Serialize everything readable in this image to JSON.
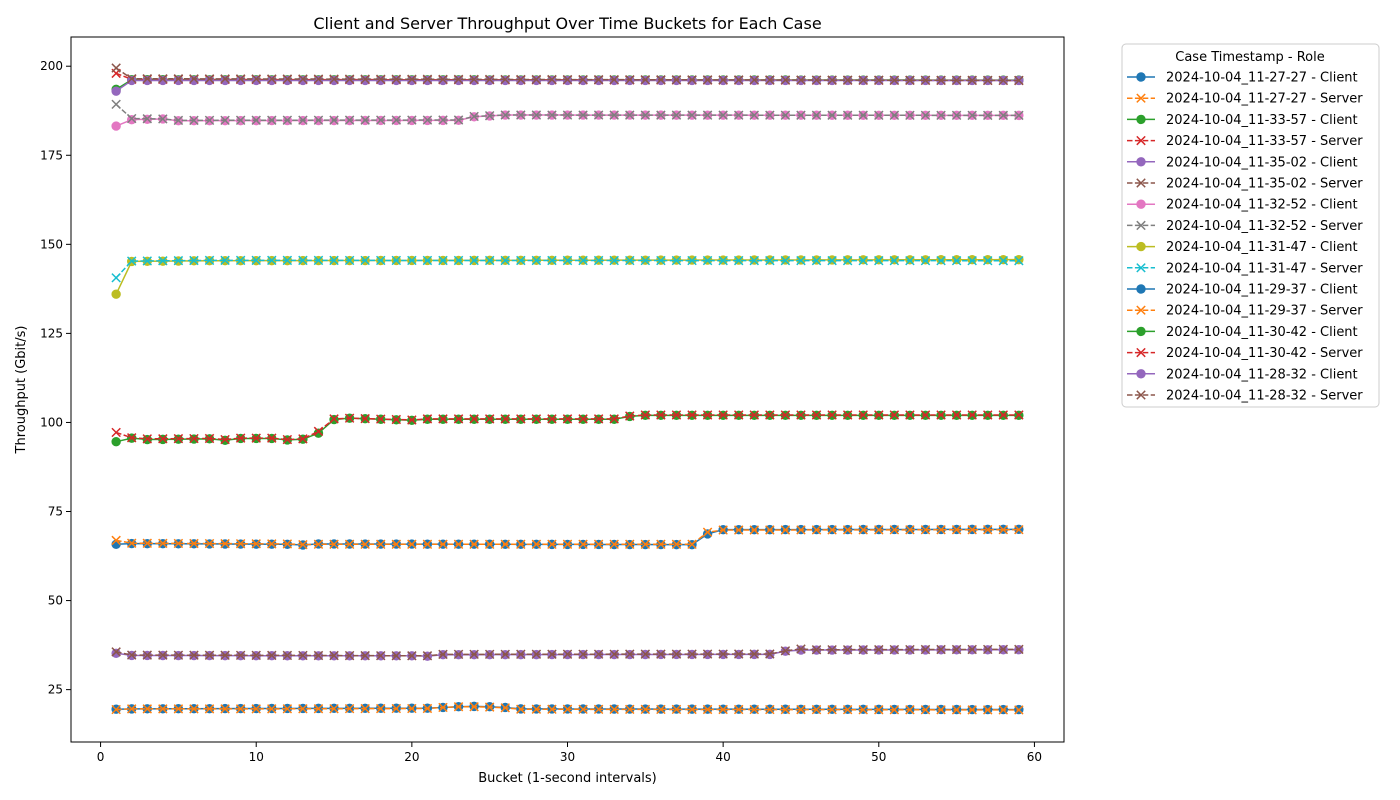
{
  "chart_data": {
    "type": "line",
    "title": "Client and Server Throughput Over Time Buckets for Each Case",
    "xlabel": "Bucket (1-second intervals)",
    "ylabel": "Throughput (Gbit/s)",
    "xlim": [
      -1.9,
      61.9
    ],
    "ylim": [
      10.3,
      208.2
    ],
    "xticks": [
      0,
      10,
      20,
      30,
      40,
      50,
      60
    ],
    "yticks": [
      25,
      50,
      75,
      100,
      125,
      150,
      175,
      200
    ],
    "grid": false,
    "legend": {
      "title": "Case Timestamp - Role",
      "placement": "outside-right"
    },
    "x_start": 1,
    "x_end": 59,
    "series": [
      {
        "name": "2024-10-04_11-27-27 - Client",
        "color": "#1f77b4",
        "style": "solid",
        "marker": "o",
        "anchors": [
          [
            1,
            19.5
          ],
          [
            2,
            19.6
          ],
          [
            10,
            19.7
          ],
          [
            21,
            19.8
          ],
          [
            22,
            20.0
          ],
          [
            23,
            20.2
          ],
          [
            24,
            20.3
          ],
          [
            25,
            20.2
          ],
          [
            26,
            20.0
          ],
          [
            27,
            19.6
          ],
          [
            59,
            19.4
          ]
        ]
      },
      {
        "name": "2024-10-04_11-27-27 - Server",
        "color": "#ff7f0e",
        "style": "dashed",
        "marker": "x",
        "anchors": [
          [
            1,
            19.4
          ],
          [
            2,
            19.6
          ],
          [
            10,
            19.6
          ],
          [
            21,
            19.7
          ],
          [
            22,
            20.0
          ],
          [
            23,
            20.2
          ],
          [
            24,
            20.2
          ],
          [
            25,
            20.1
          ],
          [
            26,
            19.9
          ],
          [
            27,
            19.5
          ],
          [
            59,
            19.3
          ]
        ]
      },
      {
        "name": "2024-10-04_11-33-57 - Client",
        "color": "#2ca02c",
        "style": "solid",
        "marker": "o",
        "anchors": [
          [
            1,
            193.5
          ],
          [
            2,
            196.2
          ],
          [
            59,
            196.1
          ]
        ]
      },
      {
        "name": "2024-10-04_11-33-57 - Server",
        "color": "#d62728",
        "style": "dashed",
        "marker": "x",
        "anchors": [
          [
            1,
            198.0
          ],
          [
            2,
            196.3
          ],
          [
            59,
            196.0
          ]
        ]
      },
      {
        "name": "2024-10-04_11-35-02 - Client",
        "color": "#9467bd",
        "style": "solid",
        "marker": "o",
        "anchors": [
          [
            1,
            35.2
          ],
          [
            2,
            34.6
          ],
          [
            13,
            34.5
          ],
          [
            20,
            34.5
          ],
          [
            21,
            34.4
          ],
          [
            22,
            34.8
          ],
          [
            43,
            34.9
          ],
          [
            44,
            35.8
          ],
          [
            45,
            36.1
          ],
          [
            59,
            36.2
          ]
        ]
      },
      {
        "name": "2024-10-04_11-35-02 - Server",
        "color": "#8c564b",
        "style": "dashed",
        "marker": "x",
        "anchors": [
          [
            1,
            35.6
          ],
          [
            2,
            34.7
          ],
          [
            13,
            34.6
          ],
          [
            20,
            34.5
          ],
          [
            21,
            34.5
          ],
          [
            22,
            34.9
          ],
          [
            43,
            35.0
          ],
          [
            44,
            35.9
          ],
          [
            45,
            36.4
          ],
          [
            46,
            36.2
          ],
          [
            59,
            36.3
          ]
        ]
      },
      {
        "name": "2024-10-04_11-32-52 - Client",
        "color": "#e377c2",
        "style": "solid",
        "marker": "o",
        "anchors": [
          [
            1,
            183.2
          ],
          [
            2,
            185.0
          ],
          [
            4,
            185.2
          ],
          [
            5,
            184.7
          ],
          [
            23,
            184.8
          ],
          [
            24,
            185.8
          ],
          [
            26,
            186.3
          ],
          [
            59,
            186.2
          ]
        ]
      },
      {
        "name": "2024-10-04_11-32-52 - Server",
        "color": "#7f7f7f",
        "style": "dashed",
        "marker": "x",
        "anchors": [
          [
            1,
            189.3
          ],
          [
            2,
            185.3
          ],
          [
            4,
            185.2
          ],
          [
            5,
            184.8
          ],
          [
            23,
            184.9
          ],
          [
            24,
            185.9
          ],
          [
            26,
            186.3
          ],
          [
            59,
            186.2
          ]
        ]
      },
      {
        "name": "2024-10-04_11-31-47 - Client",
        "color": "#bcbd22",
        "style": "solid",
        "marker": "o",
        "anchors": [
          [
            1,
            136.0
          ],
          [
            2,
            145.2
          ],
          [
            7,
            145.4
          ],
          [
            59,
            145.7
          ]
        ]
      },
      {
        "name": "2024-10-04_11-31-47 - Server",
        "color": "#17becf",
        "style": "dashed",
        "marker": "x",
        "anchors": [
          [
            1,
            140.6
          ],
          [
            2,
            145.3
          ],
          [
            7,
            145.5
          ],
          [
            59,
            145.4
          ]
        ]
      },
      {
        "name": "2024-10-04_11-29-37 - Client",
        "color": "#1f77b4",
        "style": "solid",
        "marker": "o",
        "anchors": [
          [
            1,
            65.8
          ],
          [
            2,
            66.0
          ],
          [
            12,
            65.8
          ],
          [
            13,
            65.6
          ],
          [
            14,
            65.9
          ],
          [
            38,
            65.7
          ],
          [
            39,
            68.7
          ],
          [
            40,
            69.9
          ],
          [
            59,
            70.0
          ]
        ]
      },
      {
        "name": "2024-10-04_11-29-37 - Server",
        "color": "#ff7f0e",
        "style": "dashed",
        "marker": "x",
        "anchors": [
          [
            1,
            66.9
          ],
          [
            2,
            66.1
          ],
          [
            12,
            65.9
          ],
          [
            13,
            65.7
          ],
          [
            14,
            65.8
          ],
          [
            38,
            65.8
          ],
          [
            39,
            69.2
          ],
          [
            40,
            69.8
          ],
          [
            59,
            69.9
          ]
        ]
      },
      {
        "name": "2024-10-04_11-30-42 - Client",
        "color": "#2ca02c",
        "style": "solid",
        "marker": "o",
        "anchors": [
          [
            1,
            94.6
          ],
          [
            2,
            95.6
          ],
          [
            3,
            95.2
          ],
          [
            7,
            95.4
          ],
          [
            8,
            95.0
          ],
          [
            9,
            95.5
          ],
          [
            11,
            95.5
          ],
          [
            12,
            95.1
          ],
          [
            13,
            95.3
          ],
          [
            14,
            97.0
          ],
          [
            15,
            100.8
          ],
          [
            16,
            101.2
          ],
          [
            20,
            100.6
          ],
          [
            21,
            100.9
          ],
          [
            33,
            100.9
          ],
          [
            34,
            101.7
          ],
          [
            35,
            102.0
          ],
          [
            59,
            102.0
          ]
        ]
      },
      {
        "name": "2024-10-04_11-30-42 - Server",
        "color": "#d62728",
        "style": "dashed",
        "marker": "x",
        "anchors": [
          [
            1,
            97.2
          ],
          [
            2,
            95.7
          ],
          [
            3,
            95.4
          ],
          [
            7,
            95.5
          ],
          [
            8,
            95.2
          ],
          [
            9,
            95.6
          ],
          [
            11,
            95.6
          ],
          [
            12,
            95.2
          ],
          [
            13,
            95.4
          ],
          [
            14,
            97.5
          ],
          [
            15,
            101.0
          ],
          [
            16,
            101.2
          ],
          [
            20,
            100.7
          ],
          [
            21,
            101.0
          ],
          [
            33,
            101.0
          ],
          [
            34,
            101.8
          ],
          [
            35,
            102.1
          ],
          [
            59,
            102.1
          ]
        ]
      },
      {
        "name": "2024-10-04_11-28-32 - Client",
        "color": "#9467bd",
        "style": "solid",
        "marker": "o",
        "anchors": [
          [
            1,
            193.0
          ],
          [
            2,
            196.0
          ],
          [
            59,
            196.0
          ]
        ]
      },
      {
        "name": "2024-10-04_11-28-32 - Server",
        "color": "#8c564b",
        "style": "dashed",
        "marker": "x",
        "anchors": [
          [
            1,
            199.5
          ],
          [
            2,
            196.5
          ],
          [
            59,
            196.0
          ]
        ]
      }
    ]
  }
}
